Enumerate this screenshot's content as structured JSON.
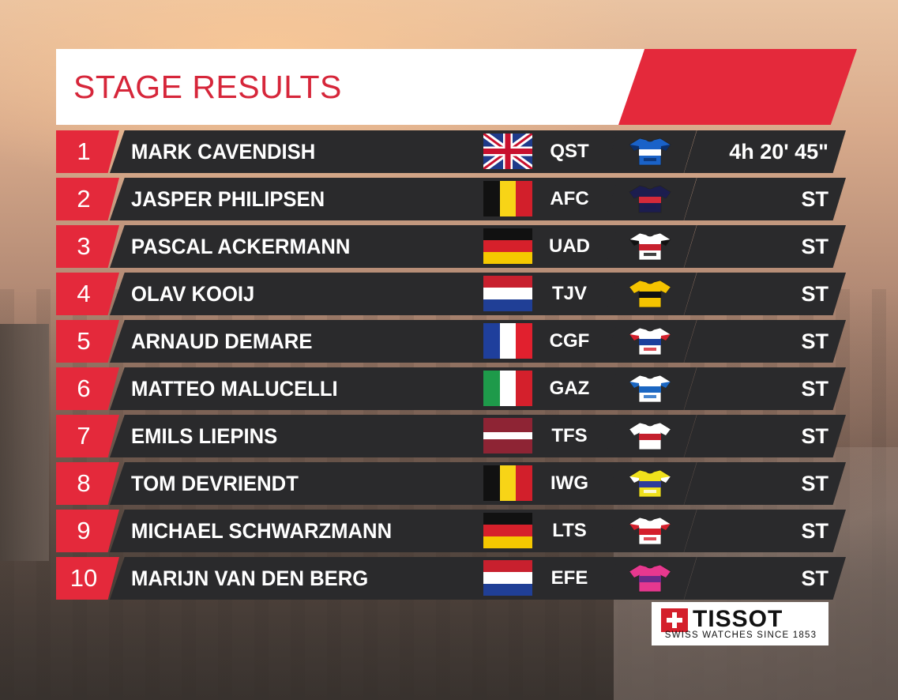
{
  "colors": {
    "accent_red": "#e4293b",
    "bar_dark": "#2a2a2c",
    "text_white": "#ffffff"
  },
  "header": {
    "title": "STAGE RESULTS"
  },
  "results": [
    {
      "pos": "1",
      "name": "MARK CAVENDISH",
      "flag": "gb",
      "team": "QST",
      "jersey": "quickstep-jersey-icon",
      "time": "4h 20' 45\""
    },
    {
      "pos": "2",
      "name": "JASPER PHILIPSEN",
      "flag": "be",
      "team": "AFC",
      "jersey": "alpecin-jersey-icon",
      "time": "ST"
    },
    {
      "pos": "3",
      "name": "PASCAL ACKERMANN",
      "flag": "de",
      "team": "UAD",
      "jersey": "uae-jersey-icon",
      "time": "ST"
    },
    {
      "pos": "4",
      "name": "OLAV KOOIJ",
      "flag": "nl",
      "team": "TJV",
      "jersey": "jumbo-visma-jersey-icon",
      "time": "ST"
    },
    {
      "pos": "5",
      "name": "ARNAUD DEMARE",
      "flag": "fr",
      "team": "CGF",
      "jersey": "groupama-fdj-jersey-icon",
      "time": "ST"
    },
    {
      "pos": "6",
      "name": "MATTEO MALUCELLI",
      "flag": "it",
      "team": "GAZ",
      "jersey": "gazprom-jersey-icon",
      "time": "ST"
    },
    {
      "pos": "7",
      "name": "EMILS LIEPINS",
      "flag": "lv",
      "team": "TFS",
      "jersey": "trek-segafredo-jersey-icon",
      "time": "ST"
    },
    {
      "pos": "8",
      "name": "TOM DEVRIENDT",
      "flag": "be",
      "team": "IWG",
      "jersey": "intermarche-jersey-icon",
      "time": "ST"
    },
    {
      "pos": "9",
      "name": "MICHAEL SCHWARZMANN",
      "flag": "de",
      "team": "LTS",
      "jersey": "lotto-soudal-jersey-icon",
      "time": "ST"
    },
    {
      "pos": "10",
      "name": "MARIJN VAN DEN BERG",
      "flag": "nl",
      "team": "EFE",
      "jersey": "ef-education-jersey-icon",
      "time": "ST"
    }
  ],
  "jersey_colors": {
    "quickstep-jersey-icon": [
      "#1a62c8",
      "#ffffff",
      "#0b2f6b"
    ],
    "alpecin-jersey-icon": [
      "#1c1d4f",
      "#d42a3a",
      "#1c1d4f"
    ],
    "uae-jersey-icon": [
      "#ffffff",
      "#c8202e",
      "#111111"
    ],
    "jumbo-visma-jersey-icon": [
      "#f5c400",
      "#111111",
      "#f5c400"
    ],
    "groupama-fdj-jersey-icon": [
      "#ffffff",
      "#1b3f9c",
      "#d4202c"
    ],
    "gazprom-jersey-icon": [
      "#ffffff",
      "#1a66c2",
      "#1a66c2"
    ],
    "trek-segafredo-jersey-icon": [
      "#ffffff",
      "#c41f2c",
      "#ffffff"
    ],
    "intermarche-jersey-icon": [
      "#f0e11c",
      "#2e3c9a",
      "#ffffff"
    ],
    "lotto-soudal-jersey-icon": [
      "#ffffff",
      "#d41f2b",
      "#d41f2b"
    ],
    "ef-education-jersey-icon": [
      "#e7388f",
      "#6b2a8a",
      "#e7388f"
    ]
  },
  "sponsor": {
    "name": "TISSOT",
    "tagline": "SWISS WATCHES SINCE 1853"
  }
}
